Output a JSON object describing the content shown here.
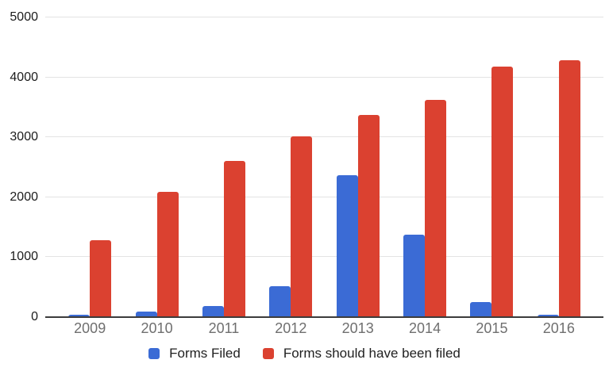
{
  "chart_data": {
    "type": "bar",
    "title": "",
    "categories": [
      "2009",
      "2010",
      "2011",
      "2012",
      "2013",
      "2014",
      "2015",
      "2016"
    ],
    "series": [
      {
        "name": "Forms Filed",
        "color": "#3b6bd5",
        "values": [
          35,
          90,
          180,
          510,
          2370,
          1370,
          250,
          40
        ]
      },
      {
        "name": "Forms should have been filed",
        "color": "#db4130",
        "values": [
          1280,
          2090,
          2600,
          3020,
          3370,
          3620,
          4185,
          4290
        ]
      }
    ],
    "ylim": [
      0,
      5000
    ],
    "ytick_step": 1000,
    "ytick_labels": [
      "0",
      "1000",
      "2000",
      "3000",
      "4000",
      "5000"
    ],
    "xlabel": "",
    "ylabel": "",
    "grid": true,
    "legend_position": "bottom"
  },
  "colors": {
    "background": "#ffffff",
    "gridline": "#e3e3e3",
    "axis_line": "#3c3c3c",
    "y_tick_text": "#1c1c1c",
    "x_tick_text": "#6f6f6f",
    "legend_text": "#1f1f1f"
  }
}
